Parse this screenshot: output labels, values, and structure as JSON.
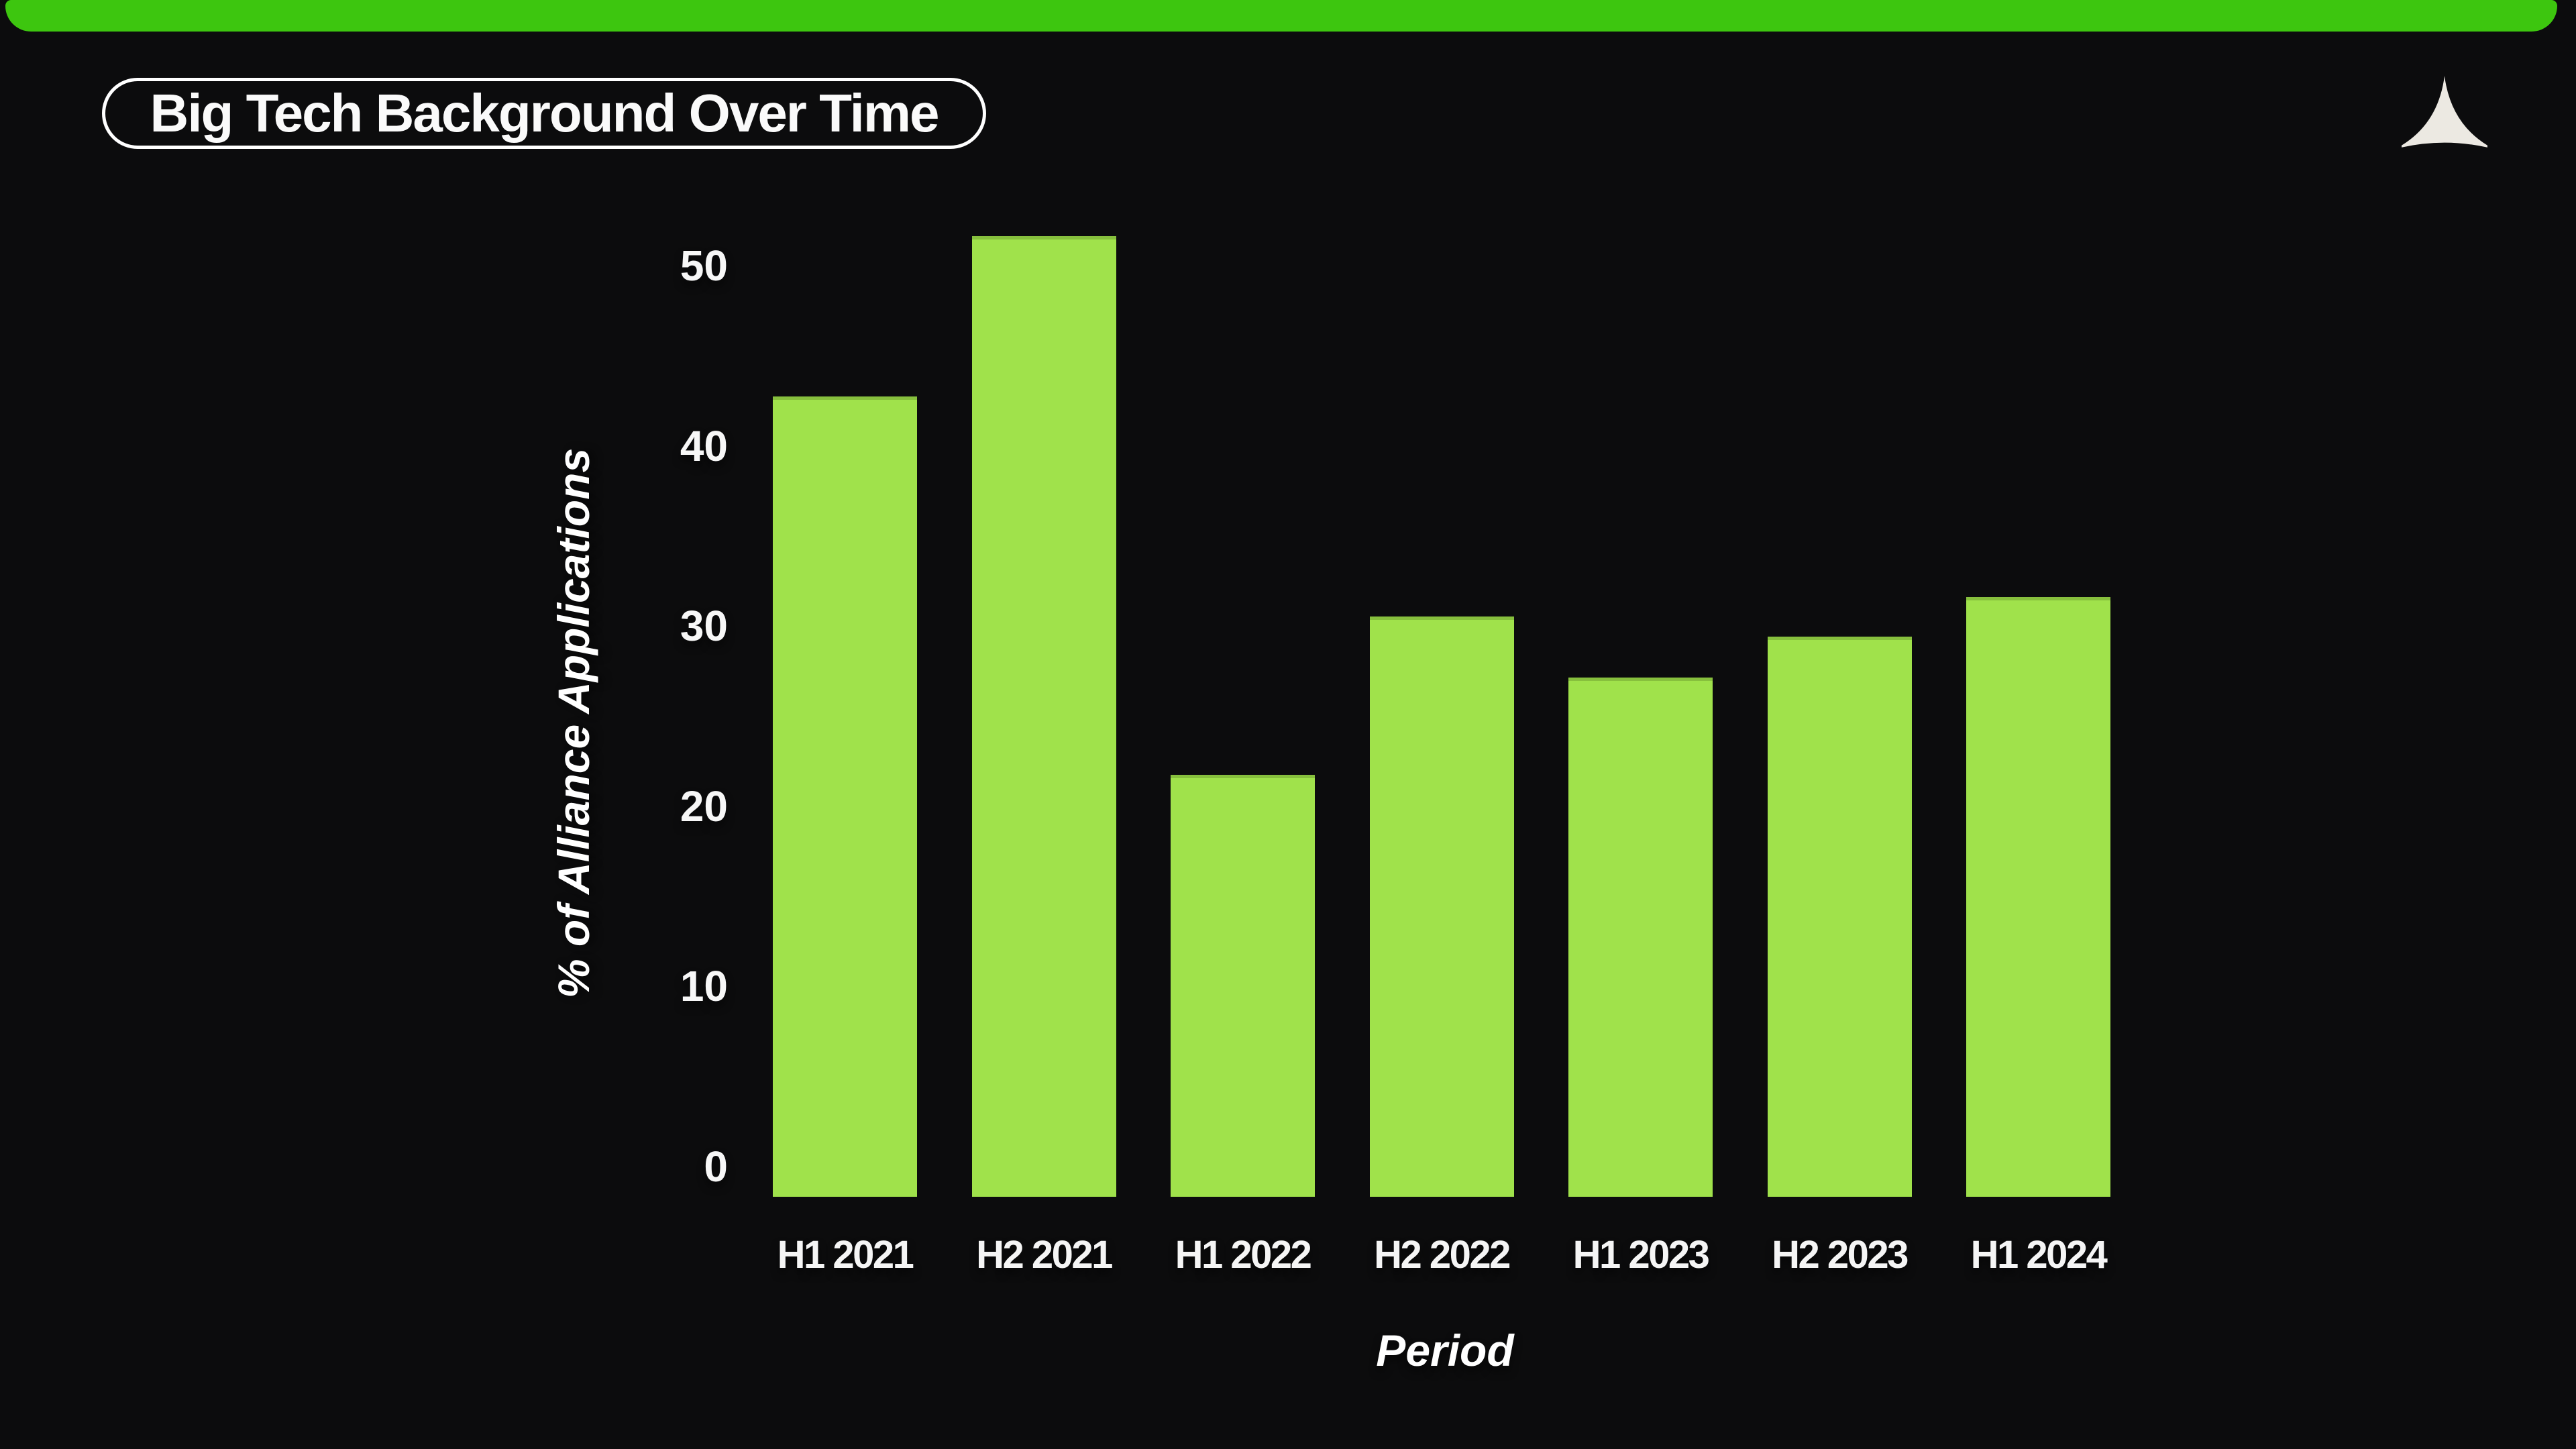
{
  "page": {
    "background_color": "#0c0c0d",
    "accent_strip_color": "#3dc60f",
    "logo_color": "#ece9e2"
  },
  "header": {
    "title": "Big Tech Background Over Time",
    "logo_icon": "alliance-curved-triangle-logo"
  },
  "chart_data": {
    "type": "bar",
    "title": "Big Tech Background Over Time",
    "categories": [
      "H1 2021",
      "H2 2021",
      "H1 2022",
      "H2 2022",
      "H1 2023",
      "H2 2023",
      "H1 2024"
    ],
    "values": [
      44.4,
      53.3,
      23.4,
      32.2,
      28.8,
      31.1,
      33.3
    ],
    "xlabel": "Period",
    "ylabel": "% of Alliance Applications",
    "yticks": [
      0,
      10,
      20,
      30,
      40,
      50
    ],
    "ylim": [
      0,
      55
    ],
    "bar_color": "#a0e24b",
    "grid": false,
    "legend": null
  }
}
